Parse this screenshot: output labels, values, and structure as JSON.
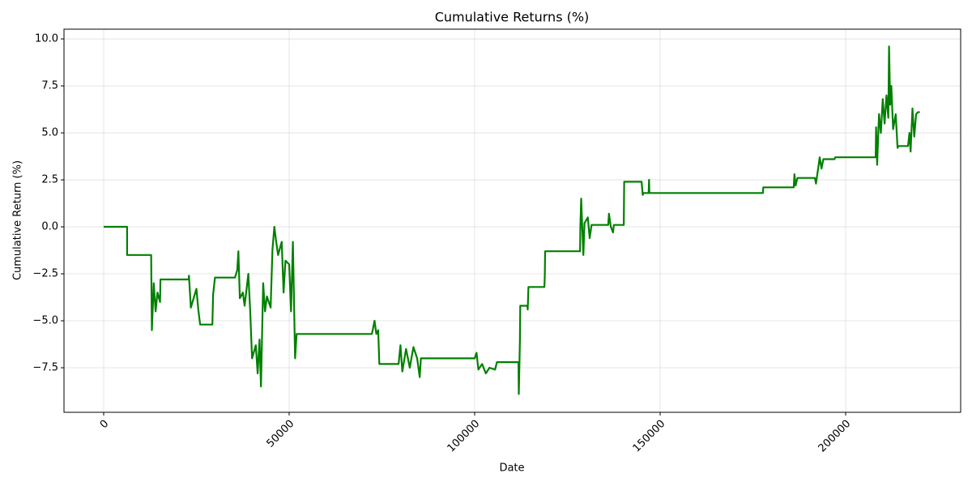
{
  "chart_data": {
    "type": "line",
    "title": "Cumulative Returns (%)",
    "x_label": "Date",
    "y_label": "Cumulative Return (%)",
    "xlim": [
      -10700,
      231000
    ],
    "ylim": [
      -9.87,
      10.52
    ],
    "xticks": [
      0,
      50000,
      100000,
      150000,
      200000
    ],
    "yticks": [
      {
        "value": -7.5,
        "label": "−7.5"
      },
      {
        "value": -5,
        "label": "−5.0"
      },
      {
        "value": -2.5,
        "label": "−2.5"
      },
      {
        "value": 0,
        "label": "0.0"
      },
      2.5,
      {
        "value": 5,
        "label": "5.0"
      },
      7.5,
      {
        "value": 10,
        "label": "10.0"
      }
    ],
    "grid": true,
    "x": [
      0,
      6300,
      6300,
      12800,
      13000,
      13500,
      14000,
      14500,
      15200,
      15300,
      22900,
      23000,
      23500,
      25000,
      25500,
      26000,
      29300,
      29500,
      30000,
      35400,
      36000,
      36300,
      36700,
      37500,
      38000,
      39000,
      39500,
      40000,
      41000,
      41500,
      42000,
      42400,
      43000,
      43500,
      44000,
      45000,
      45500,
      46000,
      46500,
      47000,
      48000,
      48500,
      49000,
      50000,
      50500,
      51000,
      51300,
      51600,
      52000,
      72300,
      72500,
      73000,
      73500,
      74000,
      74300,
      79500,
      80000,
      80500,
      81500,
      82500,
      83500,
      84500,
      85200,
      85500,
      100000,
      100500,
      101000,
      102000,
      103000,
      104000,
      105500,
      106000,
      111800,
      111900,
      112200,
      112300,
      114200,
      114300,
      114500,
      118800,
      118900,
      119000,
      128400,
      128500,
      128700,
      129000,
      129300,
      129600,
      130500,
      131000,
      131500,
      136000,
      136200,
      136700,
      137300,
      137500,
      140200,
      140300,
      145000,
      145300,
      145500,
      146900,
      147000,
      147100,
      177700,
      177800,
      186000,
      186200,
      186500,
      187000,
      191700,
      192000,
      193000,
      193500,
      194000,
      197000,
      197200,
      208100,
      208200,
      208500,
      209000,
      209500,
      210000,
      210500,
      211000,
      211500,
      211700,
      212000,
      212300,
      212800,
      213500,
      214000,
      214200,
      216800,
      217200,
      217500,
      218000,
      218500,
      219000,
      219500,
      220000
    ],
    "series": [
      {
        "name": "Cumulative Returns",
        "color": "#008000",
        "values": [
          0,
          0,
          -1.5,
          -1.5,
          -5.5,
          -3,
          -4.5,
          -3.5,
          -4,
          -2.8,
          -2.8,
          -2.6,
          -4.3,
          -3.3,
          -4.4,
          -5.2,
          -5.2,
          -3.6,
          -2.7,
          -2.7,
          -2.3,
          -1.3,
          -3.8,
          -3.5,
          -4.2,
          -2.5,
          -4.5,
          -7,
          -6.3,
          -7.8,
          -6,
          -8.5,
          -3,
          -4.5,
          -3.7,
          -4.3,
          -1.2,
          0,
          -0.8,
          -1.5,
          -0.8,
          -3.5,
          -1.8,
          -2,
          -4.5,
          -0.8,
          -4,
          -7,
          -5.7,
          -5.7,
          -5.5,
          -5,
          -5.7,
          -5.5,
          -7.3,
          -7.3,
          -6.3,
          -7.7,
          -6.5,
          -7.5,
          -6.4,
          -7,
          -8,
          -7,
          -7,
          -6.7,
          -7.6,
          -7.3,
          -7.8,
          -7.5,
          -7.6,
          -7.2,
          -7.2,
          -8.9,
          -6,
          -4.2,
          -4.2,
          -4.4,
          -3.2,
          -3.2,
          -2.6,
          -1.3,
          -1.3,
          0,
          1.5,
          0,
          -1.5,
          0.2,
          0.5,
          -0.6,
          0.1,
          0.1,
          0.7,
          0,
          -0.3,
          0.1,
          0.1,
          2.4,
          2.4,
          1.7,
          1.8,
          1.8,
          2.5,
          1.8,
          1.8,
          2.1,
          2.1,
          2.8,
          2.2,
          2.6,
          2.6,
          2.3,
          3.7,
          3.1,
          3.6,
          3.6,
          3.7,
          3.7,
          5.3,
          3.3,
          6,
          5,
          6.8,
          5.5,
          7,
          5.8,
          9.6,
          6.5,
          7.5,
          5.2,
          6,
          4.2,
          4.3,
          4.3,
          5,
          4,
          6.3,
          4.8,
          6,
          6.1,
          6.1
        ]
      }
    ]
  }
}
